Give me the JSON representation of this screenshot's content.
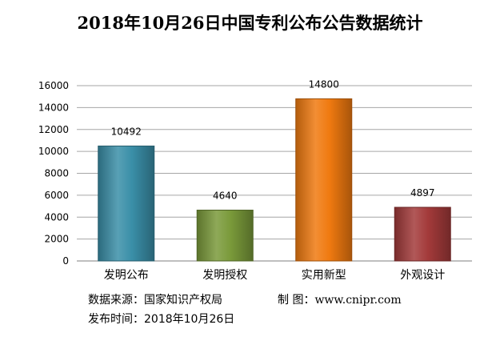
{
  "chart_data": {
    "type": "bar",
    "title": "2018年10月26日中国专利公布公告数据统计",
    "categories": [
      "发明公布",
      "发明授权",
      "实用新型",
      "外观设计"
    ],
    "values": [
      10492,
      4640,
      14800,
      4897
    ],
    "value_labels": [
      "10492",
      "4640",
      "14800",
      "4897"
    ],
    "colors": [
      "#3a8fa8",
      "#7a9a3a",
      "#f07a10",
      "#a33a3a"
    ],
    "ylim": [
      0,
      16000
    ],
    "yticks": [
      0,
      2000,
      4000,
      6000,
      8000,
      10000,
      12000,
      14000,
      16000
    ],
    "ytick_labels": [
      "0",
      "2000",
      "4000",
      "6000",
      "8000",
      "10000",
      "12000",
      "14000",
      "16000"
    ],
    "grid": true,
    "xlabel": "",
    "ylabel": ""
  },
  "footer": {
    "source": "数据来源：国家知识产权局",
    "made_by": "制 图：www.cnipr.com",
    "publish_date": "发布时间：2018年10月26日"
  }
}
